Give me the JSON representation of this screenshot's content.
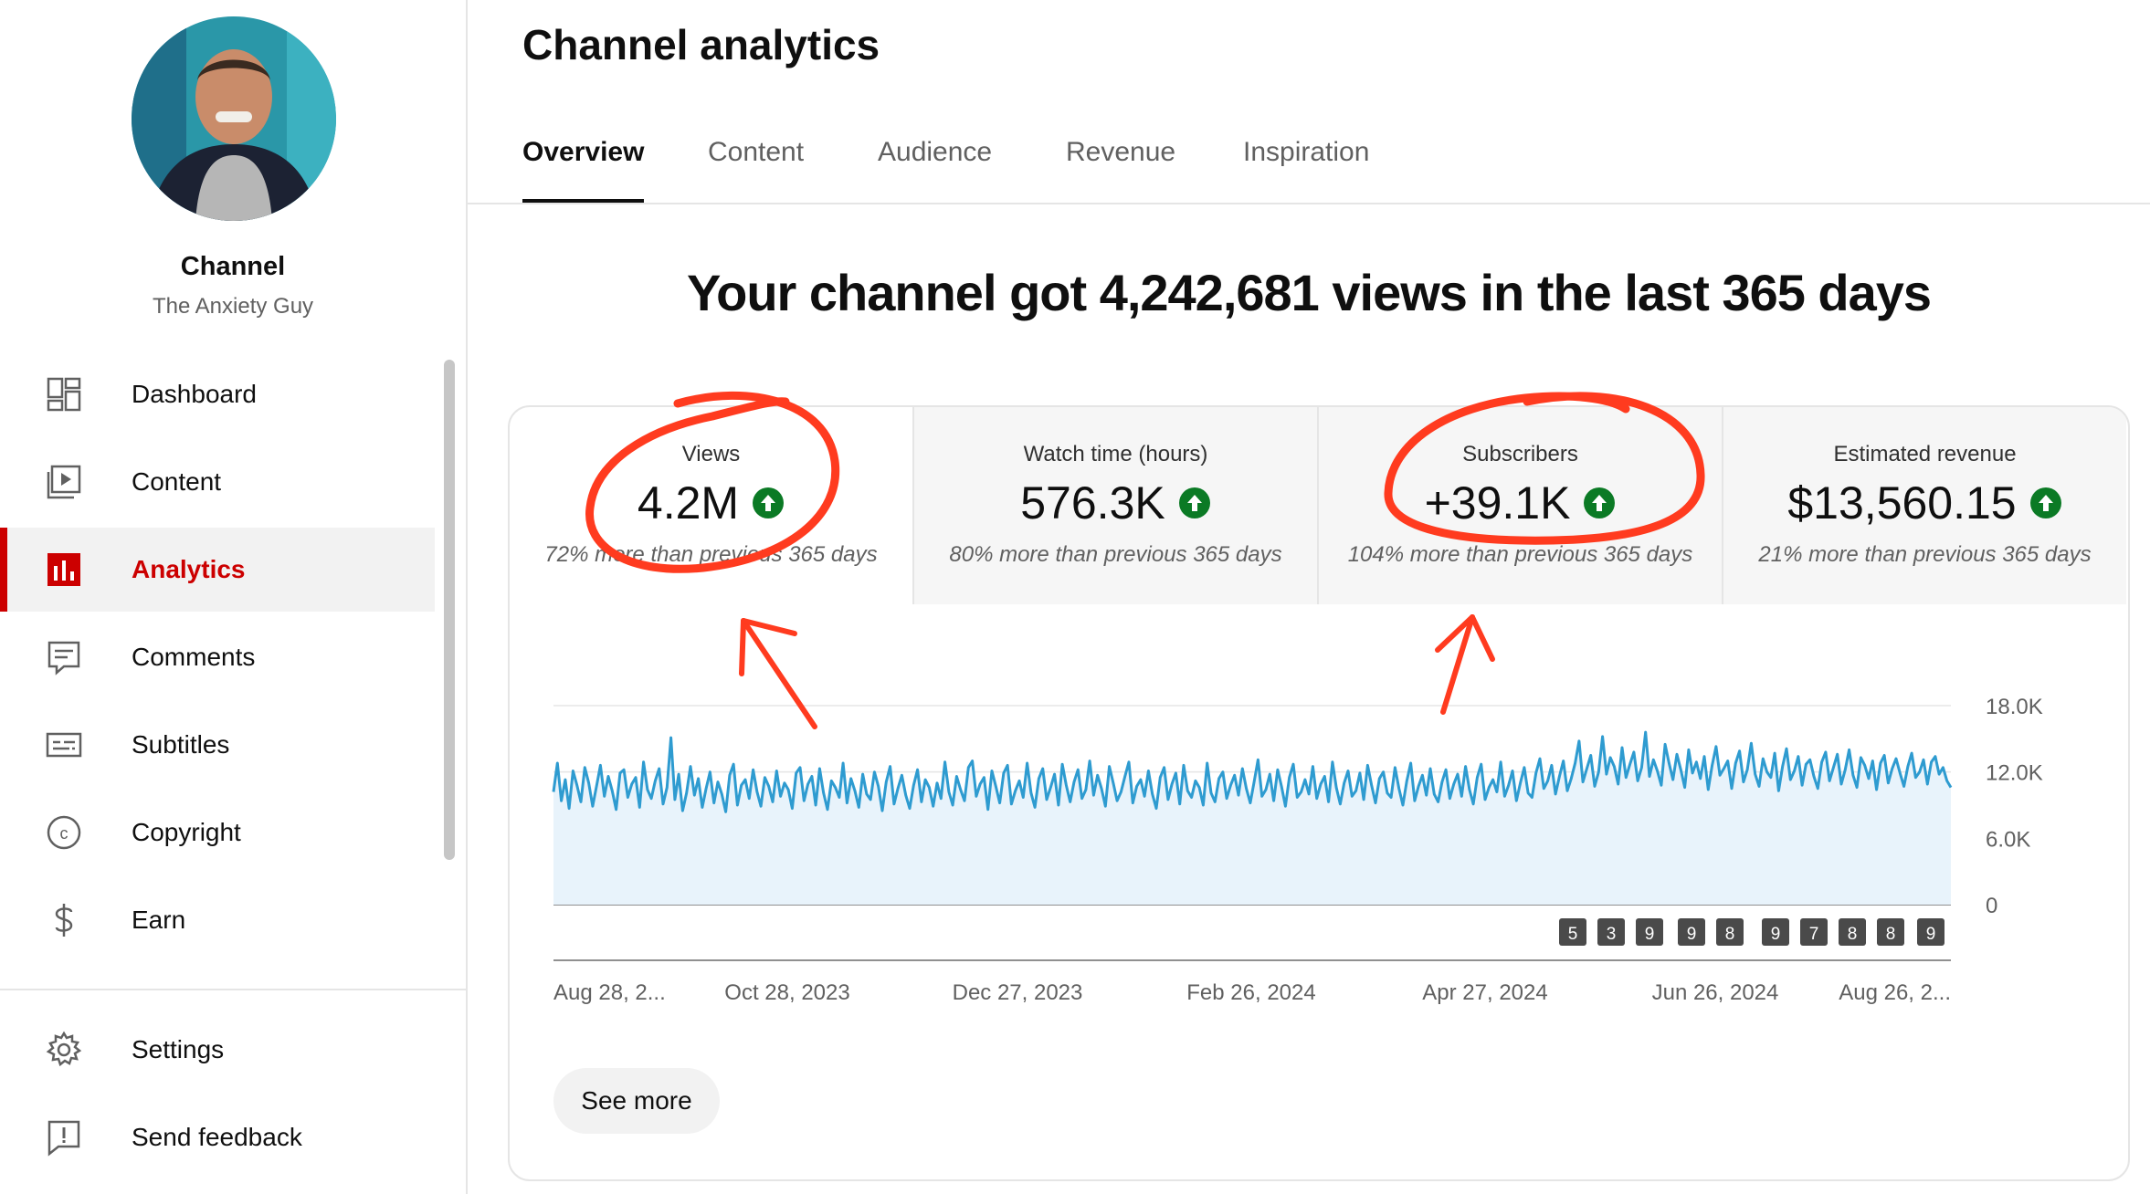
{
  "sidebar": {
    "channel_title": "Channel",
    "channel_name": "The Anxiety Guy",
    "items": [
      {
        "label": "Dashboard",
        "icon": "dashboard-icon",
        "active": false
      },
      {
        "label": "Content",
        "icon": "content-icon",
        "active": false
      },
      {
        "label": "Analytics",
        "icon": "analytics-icon",
        "active": true
      },
      {
        "label": "Comments",
        "icon": "comments-icon",
        "active": false
      },
      {
        "label": "Subtitles",
        "icon": "subtitles-icon",
        "active": false
      },
      {
        "label": "Copyright",
        "icon": "copyright-icon",
        "active": false
      },
      {
        "label": "Earn",
        "icon": "earn-icon",
        "active": false
      }
    ],
    "bottom_items": [
      {
        "label": "Settings",
        "icon": "settings-icon"
      },
      {
        "label": "Send feedback",
        "icon": "feedback-icon"
      }
    ]
  },
  "header": {
    "title": "Channel analytics",
    "tabs": [
      "Overview",
      "Content",
      "Audience",
      "Revenue",
      "Inspiration"
    ],
    "active_tab": "Overview"
  },
  "headline": "Your channel got 4,242,681 views in the last 365 days",
  "metrics": [
    {
      "label": "Views",
      "value": "4.2M",
      "note": "72% more than previous 365 days",
      "trend": "up"
    },
    {
      "label": "Watch time (hours)",
      "value": "576.3K",
      "note": "80% more than previous 365 days",
      "trend": "up"
    },
    {
      "label": "Subscribers",
      "value": "+39.1K",
      "note": "104% more than previous 365 days",
      "trend": "up"
    },
    {
      "label": "Estimated revenue",
      "value": "$13,560.15",
      "note": "21% more than previous 365 days",
      "trend": "up"
    }
  ],
  "chart_data": {
    "type": "line",
    "series": [
      {
        "values": [
          10200,
          12800,
          9400,
          11300,
          8700,
          12100,
          10800,
          9300,
          12400,
          11000,
          8900,
          10700,
          12600,
          9800,
          11600,
          10300,
          8600,
          11900,
          12200,
          9700,
          10900,
          11500,
          8800,
          12900,
          10400,
          9600,
          11200,
          12300,
          9100,
          10600,
          15100,
          9500,
          11800,
          8500,
          10100,
          12500,
          9900,
          11400,
          8800,
          10500,
          12000,
          9200,
          11100,
          10000,
          8400,
          11700,
          12700,
          9000,
          10800,
          11300,
          9600,
          12200,
          10200,
          8900,
          11500,
          10700,
          9300,
          12100,
          9800,
          11000,
          10400,
          8700,
          11900,
          12400,
          9400,
          10900,
          11600,
          9000,
          12300,
          10100,
          8600,
          11200,
          10600,
          9700,
          12800,
          9200,
          11400,
          10300,
          8800,
          11800,
          10000,
          9500,
          12000,
          10700,
          8500,
          11100,
          12500,
          9100,
          10500,
          11700,
          9900,
          8700,
          10800,
          12200,
          9300,
          11300,
          10600,
          8900,
          11000,
          9600,
          12900,
          10200,
          9000,
          11600,
          10400,
          9400,
          12400,
          13000,
          9800,
          10900,
          11500,
          8600,
          12100,
          10700,
          9200,
          11900,
          12600,
          9100,
          10300,
          11200,
          9700,
          12800,
          10100,
          8800,
          11400,
          12300,
          9500,
          10600,
          11800,
          9000,
          12700,
          10800,
          9300,
          11100,
          12200,
          9600,
          10400,
          13000,
          9900,
          11700,
          10500,
          8900,
          12500,
          11000,
          9400,
          10200,
          11600,
          12900,
          9200,
          10700,
          11300,
          9800,
          12100,
          10000,
          8700,
          11500,
          12400,
          9500,
          10900,
          11900,
          9100,
          12600,
          10300,
          9700,
          11200,
          10600,
          9000,
          12800,
          10100,
          9300,
          11400,
          12000,
          9600,
          10800,
          11700,
          9900,
          12300,
          10500,
          9200,
          11100,
          13100,
          9800,
          10400,
          11800,
          9400,
          12200,
          10700,
          8900,
          11500,
          12700,
          9700,
          10200,
          11300,
          10000,
          12500,
          9600,
          10900,
          11600,
          9300,
          12900,
          10600,
          9100,
          11000,
          12100,
          9800,
          10300,
          11900,
          9500,
          12600,
          10800,
          9200,
          11400,
          12000,
          10100,
          9700,
          12400,
          10500,
          9000,
          11200,
          12800,
          9400,
          10700,
          11700,
          9900,
          12300,
          10000,
          9300,
          11100,
          12200,
          9600,
          10900,
          11800,
          9800,
          12500,
          10400,
          9100,
          11500,
          12700,
          9500,
          10600,
          11300,
          10200,
          12900,
          9800,
          10800,
          12100,
          9400,
          11000,
          12400,
          10100,
          9700,
          11900,
          13200,
          10500,
          11200,
          12600,
          10000,
          11600,
          13000,
          10300,
          11400,
          12800,
          14800,
          11100,
          12300,
          13500,
          10700,
          12000,
          15200,
          11800,
          13300,
          12500,
          10900,
          14200,
          11500,
          12700,
          13800,
          11200,
          12400,
          15600,
          11600,
          13100,
          12100,
          10800,
          14500,
          12800,
          11300,
          13600,
          12200,
          10600,
          14000,
          11900,
          12900,
          11400,
          13400,
          10400,
          12600,
          14300,
          11700,
          12300,
          13000,
          10500,
          12800,
          13900,
          11100,
          12200,
          14600,
          11800,
          10700,
          13200,
          12000,
          11500,
          13700,
          10300,
          12500,
          14100,
          11300,
          12100,
          13400,
          10800,
          12700,
          13100,
          11600,
          10500,
          12900,
          13800,
          11200,
          12400,
          13600,
          10900,
          12200,
          14000,
          11700,
          10600,
          13300,
          12600,
          11400,
          13000,
          10400,
          12800,
          13500,
          11000,
          12300,
          13200,
          11900,
          10700,
          12500,
          13700,
          11500,
          12000,
          13100,
          10900,
          12900,
          13400,
          11800,
          12400,
          11200,
          10600
        ]
      }
    ],
    "x_tick_labels": [
      "Aug 28, 2...",
      "Oct 28, 2023",
      "Dec 27, 2023",
      "Feb 26, 2024",
      "Apr 27, 2024",
      "Jun 26, 2024",
      "Aug 26, 2..."
    ],
    "y_tick_labels": [
      "18.0K",
      "12.0K",
      "6.0K",
      "0"
    ],
    "ylim": [
      0,
      18000
    ],
    "grid": true,
    "video_markers": [
      "5",
      "3",
      "9",
      "9",
      "8",
      "9",
      "7",
      "8",
      "8",
      "9"
    ],
    "colors": {
      "line": "#2e9bd0",
      "fill": "#e8f3fb"
    }
  },
  "see_more": "See more",
  "colors": {
    "accent": "#cc0000",
    "up": "#0b7a25",
    "annotation": "#ff3b1f"
  }
}
